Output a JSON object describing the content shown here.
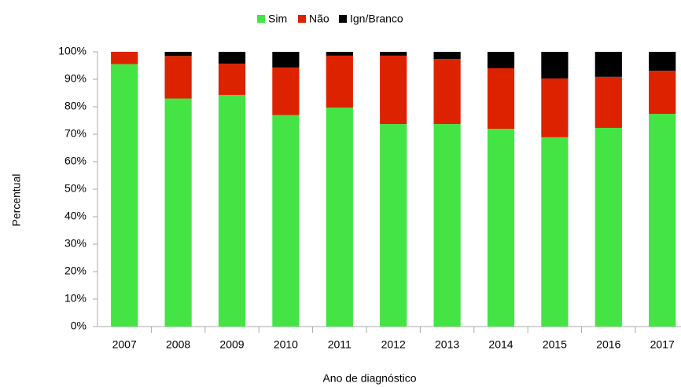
{
  "chart_data": {
    "type": "stacked_bar",
    "x_label": "Ano de diagnóstico",
    "y_label": "Percentual",
    "categories": [
      "2007",
      "2008",
      "2009",
      "2010",
      "2011",
      "2012",
      "2013",
      "2014",
      "2015",
      "2016",
      "2017"
    ],
    "series": [
      {
        "name": "Sim",
        "color": "#44e444",
        "values": [
          95.5,
          83,
          84.3,
          77,
          79.7,
          73.7,
          73.7,
          72,
          68.9,
          72.3,
          77.4
        ]
      },
      {
        "name": "Não",
        "color": "#dd2200",
        "values": [
          4.5,
          15.5,
          11.4,
          17.3,
          18.9,
          24.9,
          23.7,
          22,
          21.4,
          18.6,
          15.7
        ]
      },
      {
        "name": "Ign/Branco",
        "color": "#000000",
        "values": [
          0,
          1.5,
          4.3,
          5.7,
          1.4,
          1.4,
          2.6,
          6,
          9.7,
          9.1,
          6.9
        ]
      }
    ],
    "ylim": [
      0,
      100
    ],
    "yticks": [
      {
        "value": 0,
        "label": "0%"
      },
      {
        "value": 10,
        "label": "10%"
      },
      {
        "value": 20,
        "label": "20%"
      },
      {
        "value": 30,
        "label": "30%"
      },
      {
        "value": 40,
        "label": "40%"
      },
      {
        "value": 50,
        "label": "50%"
      },
      {
        "value": 60,
        "label": "60%"
      },
      {
        "value": 70,
        "label": "70%"
      },
      {
        "value": 80,
        "label": "80%"
      },
      {
        "value": 90,
        "label": "90%"
      },
      {
        "value": 100,
        "label": "100%"
      }
    ],
    "legend": "top"
  }
}
